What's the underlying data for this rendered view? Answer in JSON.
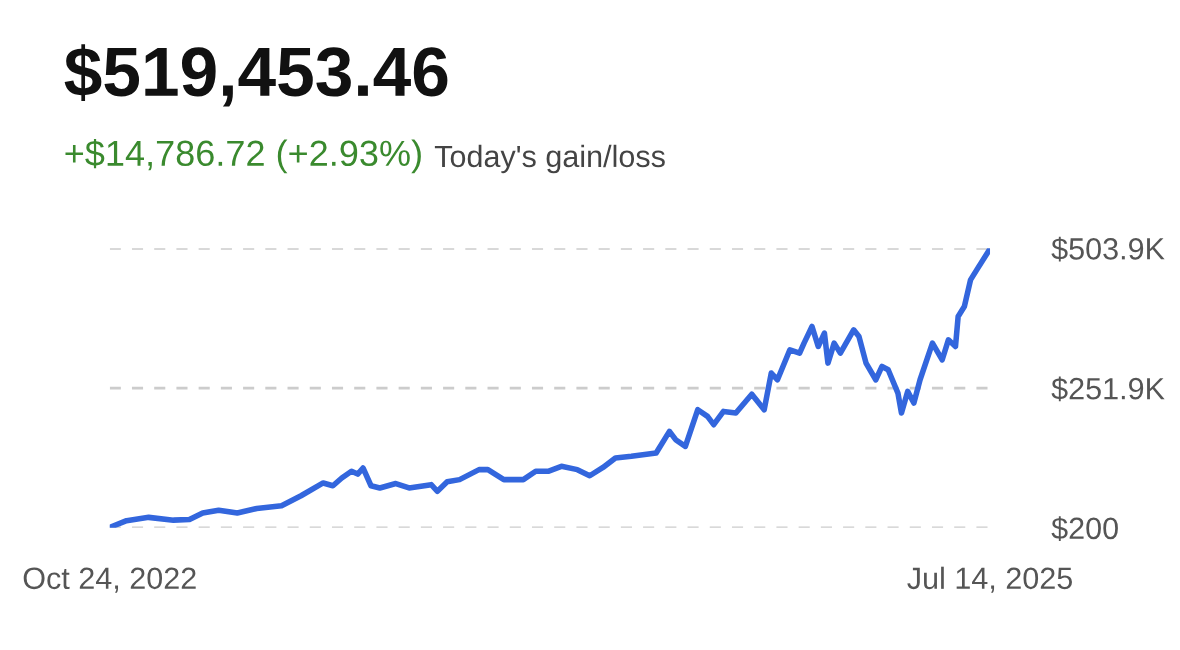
{
  "chart_data": {
    "type": "line",
    "title": "$519,453.46",
    "subtitle": "+$14,786.72 (+2.93%)",
    "annotations": [
      "Today's gain/loss"
    ],
    "x": [
      "2022-10-24",
      "2022-11-12",
      "2022-12-07",
      "2023-01-04",
      "2023-01-22",
      "2023-02-06",
      "2023-02-24",
      "2023-03-17",
      "2023-04-08",
      "2023-05-06",
      "2023-05-28",
      "2023-06-22",
      "2023-07-03",
      "2023-07-13",
      "2023-07-24",
      "2023-07-31",
      "2023-08-06",
      "2023-08-15",
      "2023-08-25",
      "2023-09-12",
      "2023-09-27",
      "2023-10-22",
      "2023-10-29",
      "2023-11-09",
      "2023-11-23",
      "2023-12-15",
      "2023-12-25",
      "2024-01-12",
      "2024-02-03",
      "2024-02-17",
      "2024-03-02",
      "2024-03-17",
      "2024-04-04",
      "2024-04-18",
      "2024-05-03",
      "2024-05-17",
      "2024-06-04",
      "2024-07-02",
      "2024-07-17",
      "2024-07-24",
      "2024-08-04",
      "2024-08-18",
      "2024-08-29",
      "2024-09-05",
      "2024-09-16",
      "2024-09-30",
      "2024-10-18",
      "2024-11-01",
      "2024-11-09",
      "2024-11-16",
      "2024-11-30",
      "2024-12-11",
      "2024-12-16",
      "2024-12-25",
      "2025-01-01",
      "2025-01-08",
      "2025-01-12",
      "2025-01-19",
      "2025-01-26",
      "2025-02-10",
      "2025-02-16",
      "2025-02-24",
      "2025-03-07",
      "2025-03-14",
      "2025-03-21",
      "2025-04-01",
      "2025-04-05",
      "2025-04-12",
      "2025-04-19",
      "2025-04-26",
      "2025-05-10",
      "2025-05-21",
      "2025-05-28",
      "2025-06-05",
      "2025-06-08",
      "2025-06-15",
      "2025-06-22",
      "2025-06-29",
      "2025-07-14"
    ],
    "series": [
      {
        "color": "#3366dd",
        "values": [
          1000,
          13000,
          19000,
          14000,
          15000,
          27000,
          32000,
          27000,
          35000,
          40000,
          58000,
          81000,
          76000,
          90000,
          102000,
          97000,
          108000,
          76000,
          72000,
          80000,
          72000,
          78000,
          66000,
          83000,
          87000,
          105000,
          105000,
          87000,
          87000,
          102000,
          102000,
          111000,
          105000,
          94000,
          109000,
          126000,
          129000,
          135000,
          174000,
          159000,
          147000,
          213000,
          201000,
          186000,
          210000,
          207000,
          241000,
          213000,
          279000,
          267000,
          321000,
          315000,
          333000,
          363000,
          327000,
          351000,
          297000,
          333000,
          315000,
          357000,
          345000,
          297000,
          267000,
          291000,
          285000,
          243000,
          207000,
          246000,
          225000,
          267000,
          333000,
          303000,
          339000,
          327000,
          381000,
          399000,
          447000,
          465000,
          503000
        ]
      }
    ],
    "xlim": [
      "2022-10-24",
      "2025-07-14"
    ],
    "xticks": [
      {
        "value": "2022-10-24",
        "label": "Oct 24, 2022"
      },
      {
        "value": "2025-07-14",
        "label": "Jul 14, 2025"
      }
    ],
    "ylim": [
      200,
      503900
    ],
    "yticks": [
      {
        "value": 200,
        "label": "$200"
      },
      {
        "value": 251900,
        "label": "$251.9K"
      },
      {
        "value": 503900,
        "label": "$503.9K"
      }
    ],
    "grid": "y",
    "legend": false,
    "marker": "none",
    "line_style": "solid"
  }
}
